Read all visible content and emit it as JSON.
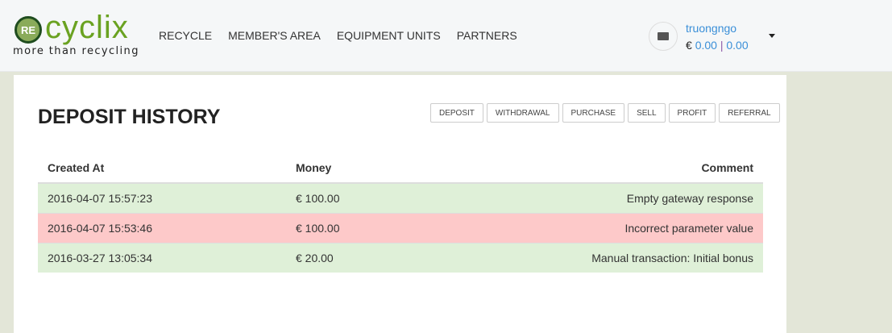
{
  "brand": {
    "badge": "RE",
    "name": "cyclix",
    "tagline": "more than recycling"
  },
  "nav": [
    {
      "label": "RECYCLE"
    },
    {
      "label": "MEMBER'S AREA"
    },
    {
      "label": "EQUIPMENT UNITS"
    },
    {
      "label": "PARTNERS"
    }
  ],
  "user": {
    "name": "truongngo",
    "currency": "€",
    "balance1": "0.00",
    "separator": "|",
    "balance2": "0.00"
  },
  "page": {
    "title": "DEPOSIT HISTORY"
  },
  "filters": [
    {
      "label": "DEPOSIT"
    },
    {
      "label": "WITHDRAWAL"
    },
    {
      "label": "PURCHASE"
    },
    {
      "label": "SELL"
    },
    {
      "label": "PROFIT"
    },
    {
      "label": "REFERRAL"
    }
  ],
  "table": {
    "headers": [
      "Created At",
      "Money",
      "Comment"
    ],
    "rows": [
      {
        "status": "success",
        "created": "2016-04-07 15:57:23",
        "money": "€ 100.00",
        "comment": "Empty gateway response"
      },
      {
        "status": "danger",
        "created": "2016-04-07 15:53:46",
        "money": "€ 100.00",
        "comment": "Incorrect parameter value"
      },
      {
        "status": "success",
        "created": "2016-03-27 13:05:34",
        "money": "€ 20.00",
        "comment": "Manual transaction: Initial bonus"
      }
    ]
  },
  "colors": {
    "brand_green": "#6aa221",
    "link_blue": "#3a8fd8",
    "success_row": "#dff0d8",
    "danger_row": "#fdc9c9"
  }
}
